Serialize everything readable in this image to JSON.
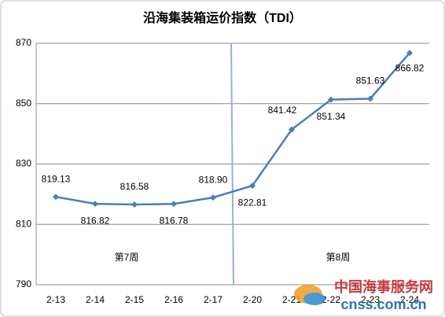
{
  "chart_data": {
    "type": "line",
    "title": "沿海集装箱运价指数（TDI）",
    "categories": [
      "2-13",
      "2-14",
      "2-15",
      "2-16",
      "2-17",
      "2-20",
      "2-21",
      "2-22",
      "2-23",
      "2-24"
    ],
    "series": [
      {
        "name": "TDI",
        "color": "#4a7ebb",
        "values": [
          819.13,
          816.82,
          816.58,
          816.78,
          818.9,
          822.81,
          841.42,
          851.34,
          851.63,
          866.82
        ],
        "value_labels": [
          "819.13",
          "816.82",
          "816.58",
          "816.78",
          "818.90",
          "822.81",
          "841.42",
          "851.34",
          "851.63",
          "866.82"
        ]
      }
    ],
    "ylim": [
      790,
      870
    ],
    "yticks": [
      790,
      810,
      830,
      850,
      870
    ],
    "grid": true,
    "annotations": [
      "第7周",
      "第8周"
    ],
    "watermark": [
      "中国海事服务网",
      "cnss.com.cn"
    ]
  }
}
